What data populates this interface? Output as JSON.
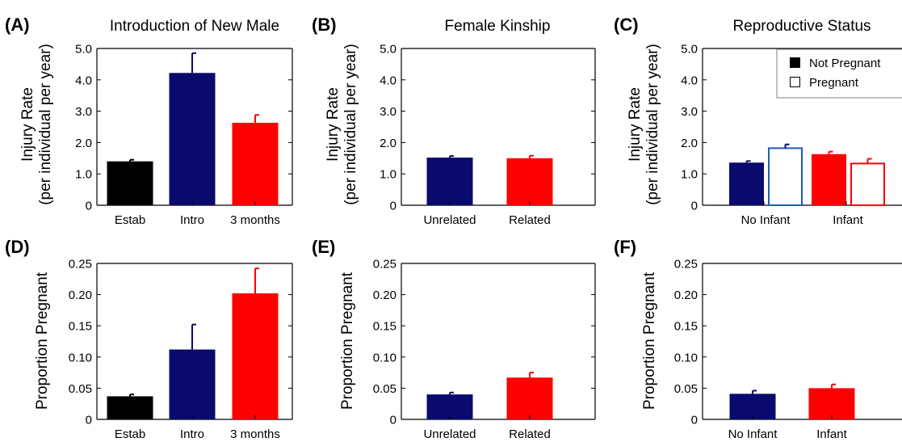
{
  "colors": {
    "black": "#000000",
    "navy": "#0a0a6e",
    "red": "#ff0000",
    "white": "#ffffff",
    "open_navy_edge": "#1e5bb5",
    "open_red_edge": "#ff0000"
  },
  "legend": {
    "not_pregnant": "Not Pregnant",
    "pregnant": "Pregnant"
  },
  "chart_data": [
    {
      "id": "A",
      "letter": "(A)",
      "type": "bar",
      "title": "Introduction of New Male",
      "ylabel_line1": "Injury Rate",
      "ylabel_line2": "(per individual per year)",
      "ylim": [
        0,
        5
      ],
      "yticks": [
        "0",
        "1.0",
        "2.0",
        "3.0",
        "4.0",
        "5.0"
      ],
      "categories": [
        "Estab",
        "Intro",
        "3 months"
      ],
      "values": [
        1.4,
        4.22,
        2.63
      ],
      "errors": [
        0.05,
        0.63,
        0.25
      ],
      "bar_colors": [
        "black",
        "navy",
        "red"
      ],
      "fill": [
        "solid",
        "solid",
        "solid"
      ]
    },
    {
      "id": "B",
      "letter": "(B)",
      "type": "bar",
      "title": "Female Kinship",
      "ylabel_line1": "Injury Rate",
      "ylabel_line2": "(per individual per year)",
      "ylim": [
        0,
        5
      ],
      "yticks": [
        "0",
        "1.0",
        "2.0",
        "3.0",
        "4.0",
        "5.0"
      ],
      "categories": [
        "Unrelated",
        "Related"
      ],
      "values": [
        1.52,
        1.5
      ],
      "errors": [
        0.05,
        0.08
      ],
      "bar_colors": [
        "navy",
        "red"
      ],
      "fill": [
        "solid",
        "solid"
      ]
    },
    {
      "id": "C",
      "letter": "(C)",
      "type": "bar",
      "title": "Reproductive Status",
      "ylabel_line1": "Injury Rate",
      "ylabel_line2": "(per individual per year)",
      "ylim": [
        0,
        5
      ],
      "yticks": [
        "0",
        "1.0",
        "2.0",
        "3.0",
        "4.0",
        "5.0"
      ],
      "categories": [
        "No Infant",
        "Infant"
      ],
      "grouped": true,
      "series": [
        {
          "name": "Not Pregnant",
          "values": [
            1.36,
            1.63
          ],
          "errors": [
            0.05,
            0.08
          ]
        },
        {
          "name": "Pregnant",
          "values": [
            1.82,
            1.33
          ],
          "errors": [
            0.12,
            0.15
          ]
        }
      ],
      "legend_position": "top-right"
    },
    {
      "id": "D",
      "letter": "(D)",
      "type": "bar",
      "title": "",
      "ylabel_line1": "Proportion Pregnant",
      "ylabel_line2": "",
      "ylim": [
        0,
        0.25
      ],
      "yticks": [
        "0",
        "0.05",
        "0.10",
        "0.15",
        "0.20",
        "0.25"
      ],
      "categories": [
        "Estab",
        "Intro",
        "3 months"
      ],
      "values": [
        0.037,
        0.112,
        0.202
      ],
      "errors": [
        0.003,
        0.04,
        0.04
      ],
      "bar_colors": [
        "black",
        "navy",
        "red"
      ],
      "fill": [
        "solid",
        "solid",
        "solid"
      ]
    },
    {
      "id": "E",
      "letter": "(E)",
      "type": "bar",
      "title": "",
      "ylabel_line1": "Proportion Pregnant",
      "ylabel_line2": "",
      "ylim": [
        0,
        0.25
      ],
      "yticks": [
        "0",
        "0.05",
        "0.10",
        "0.15",
        "0.20",
        "0.25"
      ],
      "categories": [
        "Unrelated",
        "Related"
      ],
      "values": [
        0.04,
        0.067
      ],
      "errors": [
        0.003,
        0.008
      ],
      "bar_colors": [
        "navy",
        "red"
      ],
      "fill": [
        "solid",
        "solid"
      ]
    },
    {
      "id": "F",
      "letter": "(F)",
      "type": "bar",
      "title": "",
      "ylabel_line1": "Proportion Pregnant",
      "ylabel_line2": "",
      "ylim": [
        0,
        0.25
      ],
      "yticks": [
        "0",
        "0.05",
        "0.10",
        "0.15",
        "0.20",
        "0.25"
      ],
      "categories": [
        "No Infant",
        "Infant"
      ],
      "values": [
        0.041,
        0.05
      ],
      "errors": [
        0.005,
        0.006
      ],
      "bar_colors": [
        "navy",
        "red"
      ],
      "fill": [
        "solid",
        "solid"
      ]
    }
  ]
}
